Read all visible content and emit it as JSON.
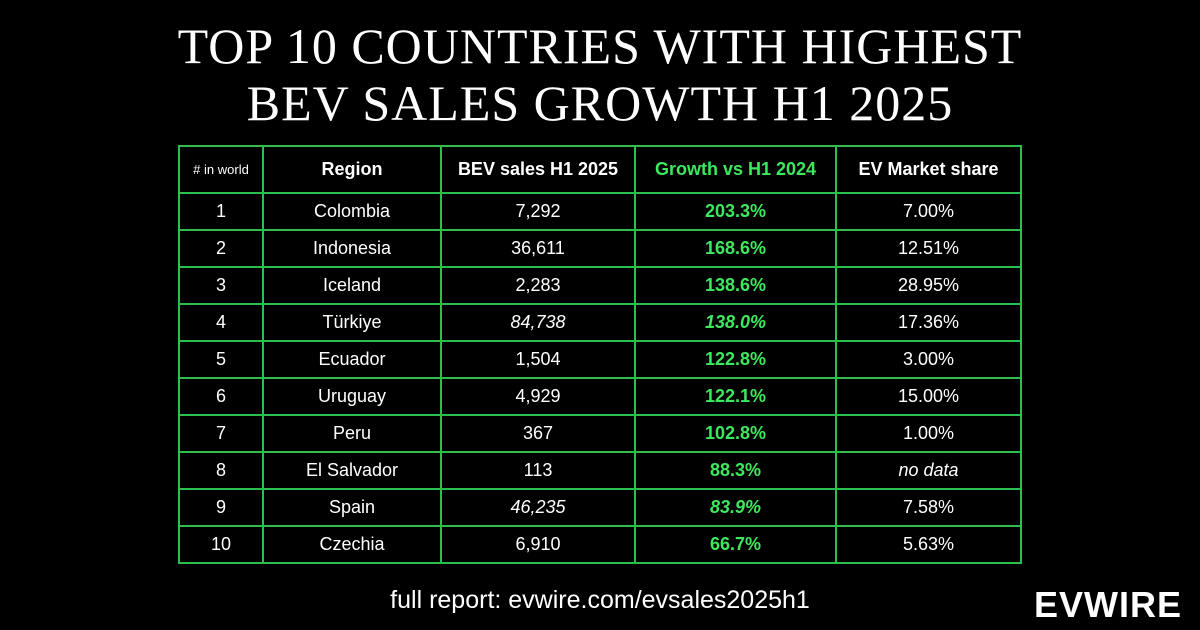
{
  "title": {
    "line1": "TOP 10 COUNTRIES WITH HIGHEST",
    "line2": "BEV SALES GROWTH H1 2025"
  },
  "colors": {
    "accent_green": "#3ee85e",
    "border_green": "#2bbf4b",
    "background": "#000000"
  },
  "chart_data": {
    "type": "table",
    "title": "TOP 10 COUNTRIES WITH HIGHEST BEV SALES GROWTH H1 2025",
    "columns": [
      "# in world",
      "Region",
      "BEV sales H1 2025",
      "Growth vs H1 2024",
      "EV Market share"
    ],
    "rows": [
      {
        "rank": "1",
        "region": "Colombia",
        "sales": "7,292",
        "growth": "203.3%",
        "share": "7.00%",
        "italic": false
      },
      {
        "rank": "2",
        "region": "Indonesia",
        "sales": "36,611",
        "growth": "168.6%",
        "share": "12.51%",
        "italic": false
      },
      {
        "rank": "3",
        "region": "Iceland",
        "sales": "2,283",
        "growth": "138.6%",
        "share": "28.95%",
        "italic": false
      },
      {
        "rank": "4",
        "region": "Türkiye",
        "sales": "84,738",
        "growth": "138.0%",
        "share": "17.36%",
        "italic": true
      },
      {
        "rank": "5",
        "region": "Ecuador",
        "sales": "1,504",
        "growth": "122.8%",
        "share": "3.00%",
        "italic": false
      },
      {
        "rank": "6",
        "region": "Uruguay",
        "sales": "4,929",
        "growth": "122.1%",
        "share": "15.00%",
        "italic": false
      },
      {
        "rank": "7",
        "region": "Peru",
        "sales": "367",
        "growth": "102.8%",
        "share": "1.00%",
        "italic": false
      },
      {
        "rank": "8",
        "region": "El Salvador",
        "sales": "113",
        "growth": "88.3%",
        "share": "no data",
        "italic": false,
        "share_italic": true
      },
      {
        "rank": "9",
        "region": "Spain",
        "sales": "46,235",
        "growth": "83.9%",
        "share": "7.58%",
        "italic": true
      },
      {
        "rank": "10",
        "region": "Czechia",
        "sales": "6,910",
        "growth": "66.7%",
        "share": "5.63%",
        "italic": false
      }
    ]
  },
  "footer": {
    "text": "full report: evwire.com/evsales2025h1"
  },
  "brand": {
    "logo_text": "EVWIRE"
  }
}
